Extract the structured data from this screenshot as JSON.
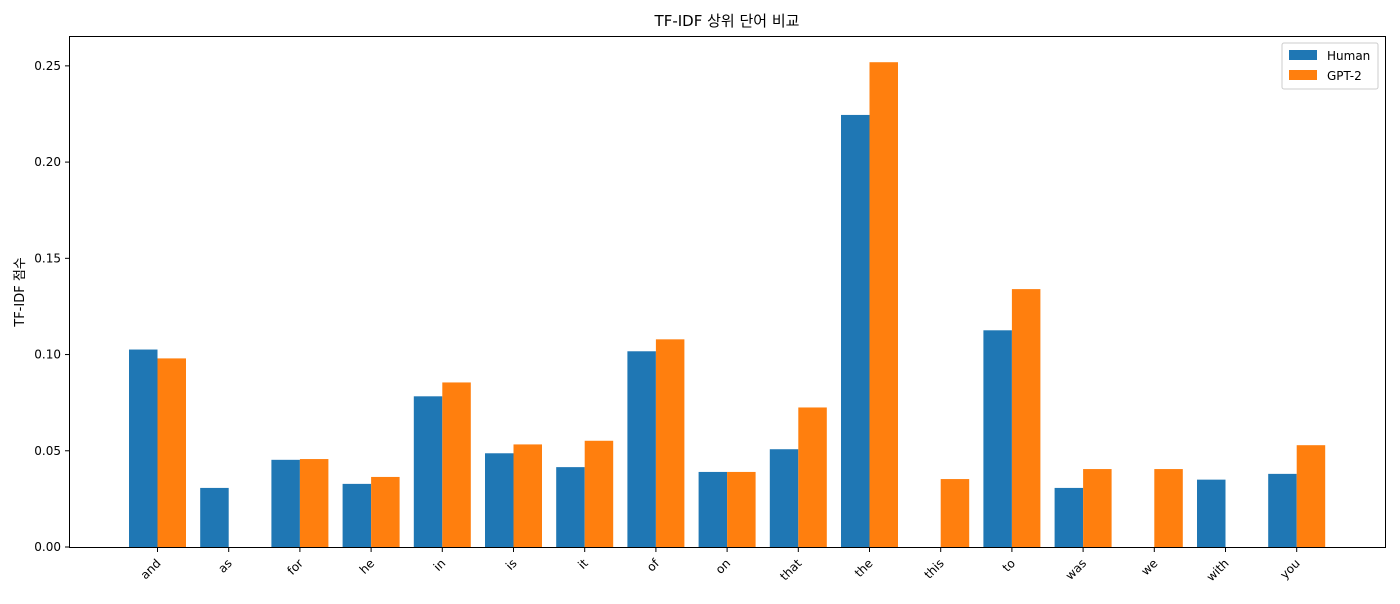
{
  "chart_data": {
    "type": "bar",
    "title": "TF-IDF 상위 단어 비교",
    "xlabel": "",
    "ylabel": "TF-IDF 점수",
    "categories": [
      "and",
      "as",
      "for",
      "he",
      "in",
      "is",
      "it",
      "of",
      "on",
      "that",
      "the",
      "this",
      "to",
      "was",
      "we",
      "with",
      "you"
    ],
    "series": [
      {
        "name": "Human",
        "color": "#1f77b4",
        "values": [
          0.1026,
          0.0307,
          0.0453,
          0.0328,
          0.0783,
          0.0487,
          0.0415,
          0.1017,
          0.039,
          0.0508,
          0.2245,
          0.0,
          0.1126,
          0.0307,
          0.0,
          0.035,
          0.038
        ]
      },
      {
        "name": "GPT-2",
        "color": "#ff7f0e",
        "values": [
          0.098,
          0.0,
          0.0457,
          0.0364,
          0.0855,
          0.0533,
          0.0552,
          0.1079,
          0.039,
          0.0725,
          0.2519,
          0.0353,
          0.134,
          0.0405,
          0.0405,
          0.0,
          0.0529
        ]
      }
    ],
    "ylim": [
      0,
      0.265
    ],
    "yticks": [
      "0.00",
      "0.05",
      "0.10",
      "0.15",
      "0.20",
      "0.25"
    ],
    "ytick_values": [
      0,
      0.05,
      0.1,
      0.15,
      0.2,
      0.25
    ],
    "grid": false,
    "legend_position": "top-right",
    "xtick_rotation": 45
  }
}
